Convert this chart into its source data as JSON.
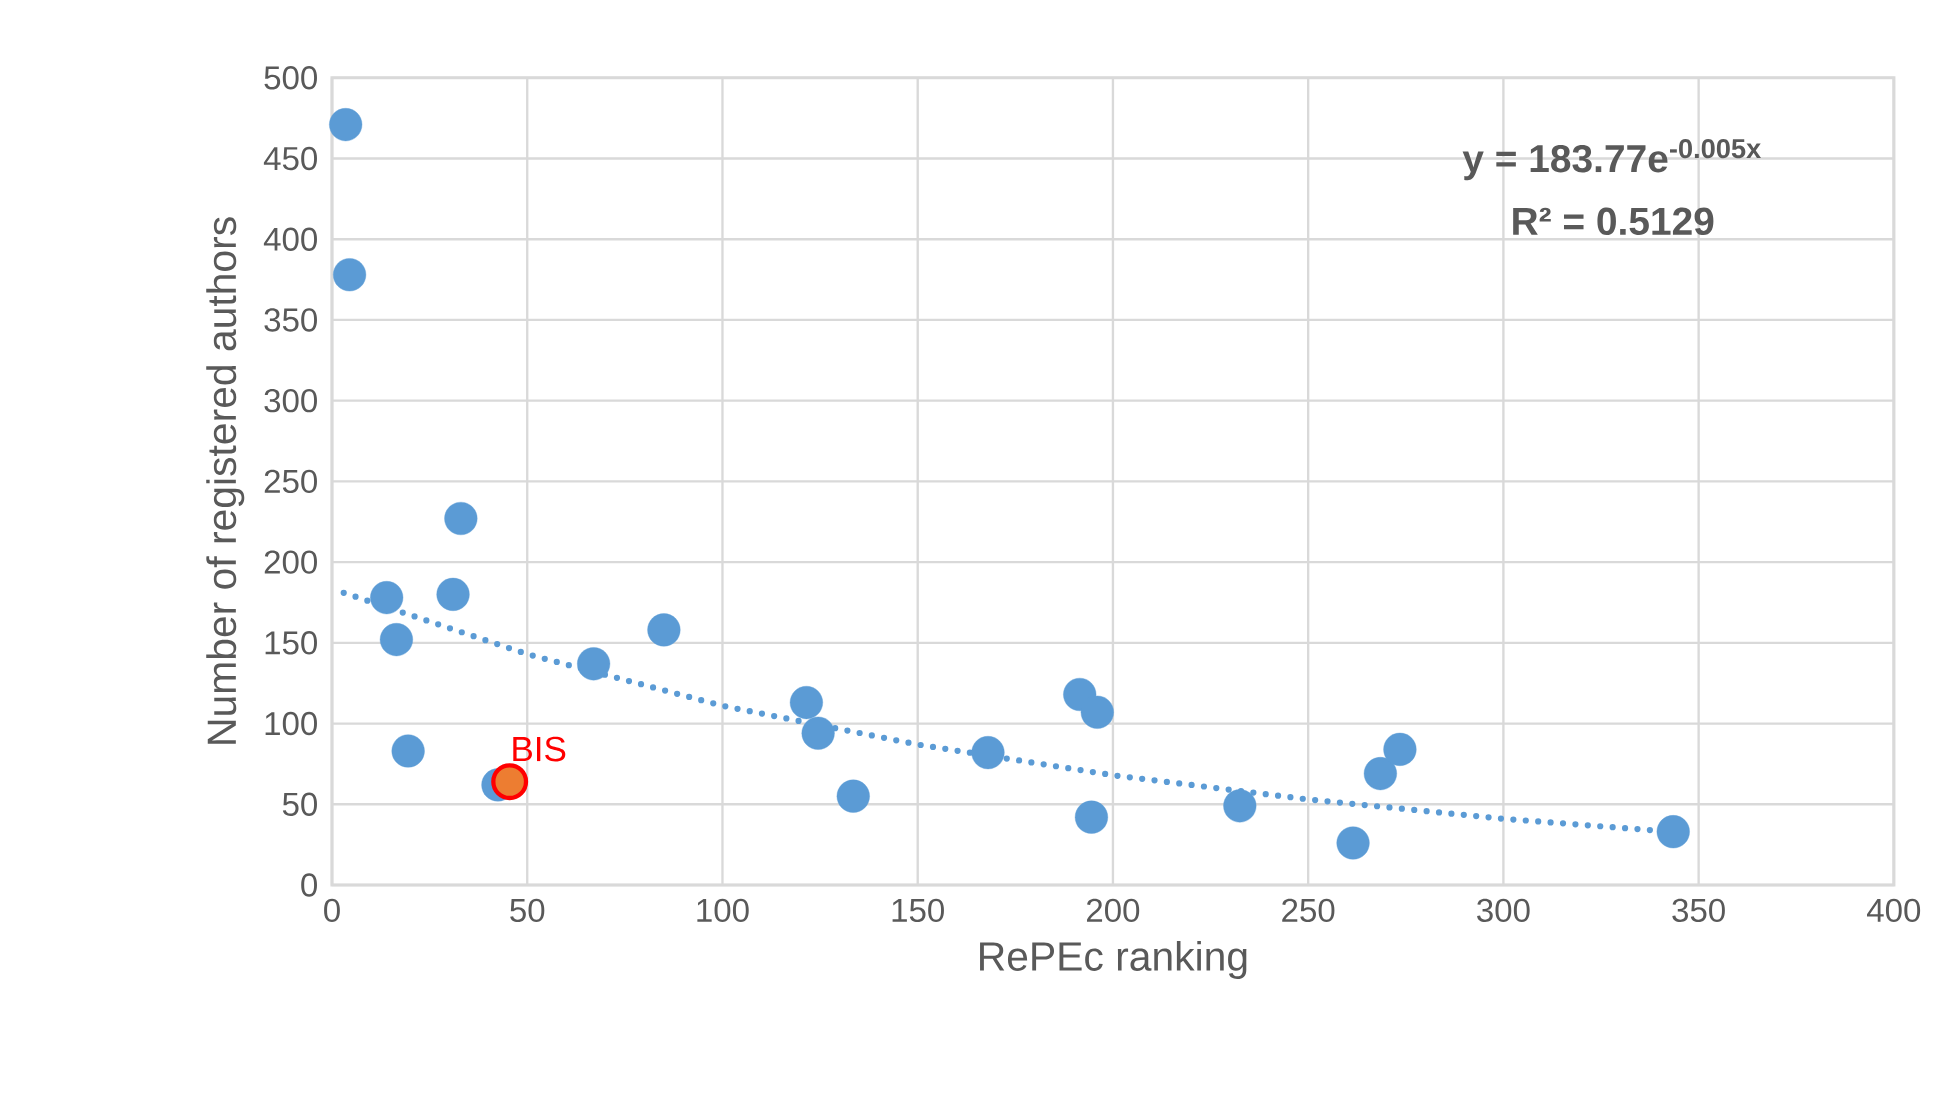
{
  "chart_data": {
    "type": "scatter",
    "xlabel": "RePEc ranking",
    "ylabel": "Number of registered authors",
    "xlim": [
      0,
      400
    ],
    "ylim": [
      0,
      500
    ],
    "xticks": [
      0,
      50,
      100,
      150,
      200,
      250,
      300,
      350,
      400
    ],
    "yticks": [
      0,
      50,
      100,
      150,
      200,
      250,
      300,
      350,
      400,
      450,
      500
    ],
    "grid": true,
    "series": [
      {
        "marker": "circle",
        "color": "#5b9bd5",
        "x": [
          3.5,
          4.5,
          14,
          16.5,
          19.5,
          33,
          31,
          42.5,
          67,
          85,
          121.5,
          124.5,
          133.5,
          168,
          191.5,
          196,
          194.5,
          232.5,
          261.5,
          268.5,
          273.5,
          343.5
        ],
        "values": [
          471,
          378,
          178,
          152,
          83,
          227,
          180,
          62,
          137,
          158,
          113,
          94,
          55,
          82,
          118,
          107,
          42,
          49,
          26,
          69,
          84,
          33
        ]
      },
      {
        "marker": "circle",
        "color": "#ed7d31",
        "x": [
          45.5
        ],
        "values": [
          64
        ]
      },
      {
        "type": "line",
        "line_style": "dotted",
        "marker": "none",
        "color": "#5b9bd5",
        "x": [
          3,
          50,
          100,
          150,
          200,
          250,
          300,
          343
        ],
        "values": [
          181,
          143,
          111,
          87,
          68,
          53,
          41,
          33
        ]
      }
    ],
    "annotations": [
      "y = 183.77e$^{-0.005x}$",
      "R² = 0.5129",
      {
        "text": "BIS",
        "x": 45.5,
        "y": 64
      }
    ]
  }
}
